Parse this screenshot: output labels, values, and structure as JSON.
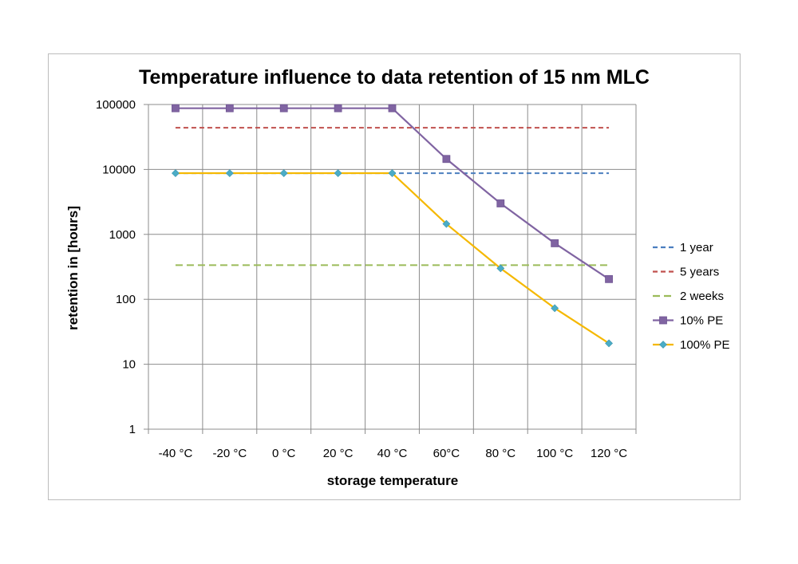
{
  "chart_data": {
    "type": "line",
    "title": "Temperature influence to data retention of 15 nm MLC",
    "xlabel": "storage temperature",
    "ylabel": "retention in [hours]",
    "categories": [
      "-40 °C",
      "-20 °C",
      "0 °C",
      "20 °C",
      "40 °C",
      "60°C",
      "80 °C",
      "100 °C",
      "120 °C"
    ],
    "yscale": "log",
    "ylim": [
      1,
      100000
    ],
    "yticks": [
      {
        "value": 1,
        "label": "1"
      },
      {
        "value": 10,
        "label": "10"
      },
      {
        "value": 100,
        "label": "100"
      },
      {
        "value": 1000,
        "label": "1000"
      },
      {
        "value": 10000,
        "label": "10000"
      },
      {
        "value": 100000,
        "label": "100000"
      }
    ],
    "grid": true,
    "legend_position": "right",
    "series": [
      {
        "name": "1 year",
        "style": "dashed",
        "color": "#4a7ebf",
        "marker": "none",
        "values": [
          8760,
          8760,
          8760,
          8760,
          8760,
          8760,
          8760,
          8760,
          8760
        ]
      },
      {
        "name": "5 years",
        "style": "dashed",
        "color": "#c0504d",
        "marker": "none",
        "values": [
          43800,
          43800,
          43800,
          43800,
          43800,
          43800,
          43800,
          43800,
          43800
        ]
      },
      {
        "name": "2 weeks",
        "style": "dashed",
        "color": "#9bbb59",
        "marker": "none",
        "values": [
          336,
          336,
          336,
          336,
          336,
          336,
          336,
          336,
          336
        ]
      },
      {
        "name": "10% PE",
        "style": "solid",
        "color": "#8064a2",
        "marker": "square",
        "values": [
          87600,
          87600,
          87600,
          87600,
          87600,
          14500,
          3000,
          730,
          205
        ]
      },
      {
        "name": "100% PE",
        "style": "solid",
        "color": "#f5b800",
        "marker": "diamond",
        "marker_color": "#4bacc6",
        "values": [
          8760,
          8760,
          8760,
          8760,
          8760,
          1450,
          300,
          73,
          21
        ]
      }
    ]
  }
}
